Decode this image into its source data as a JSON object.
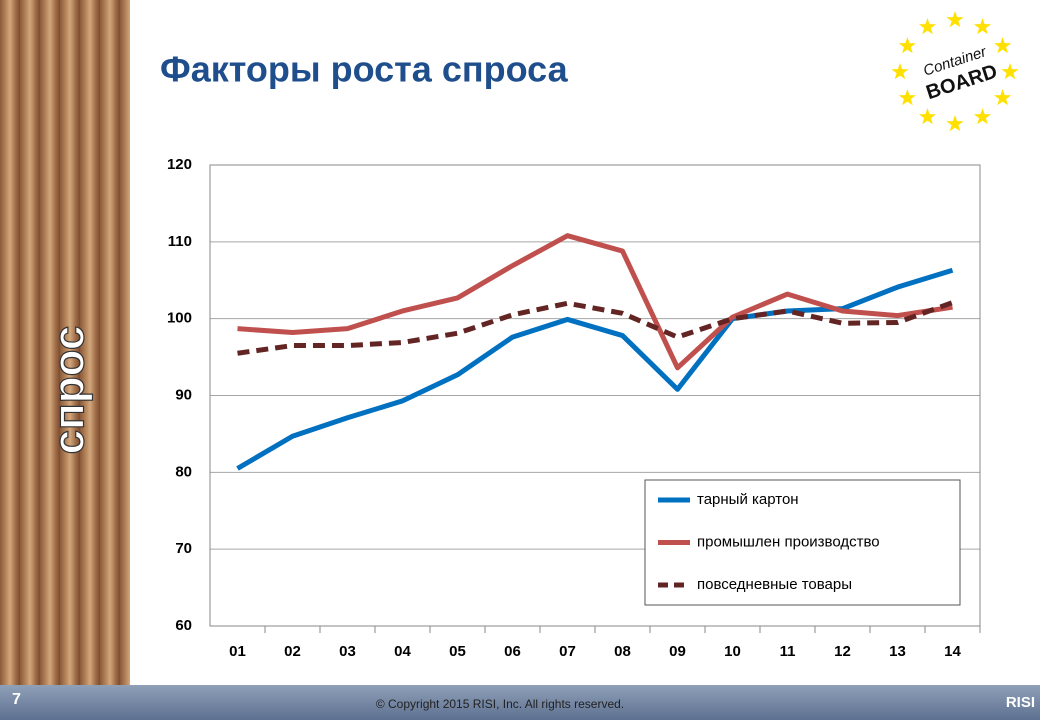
{
  "slide": {
    "side_label": "спрос",
    "logo_top": "Container",
    "logo_bottom": "BOARD",
    "page": "7",
    "copyright": "© Copyright 2015 RISI, Inc. All rights reserved.",
    "brand": "RISI"
  },
  "chart_data": {
    "type": "line",
    "title": "Факторы роста спроса",
    "categories": [
      "01",
      "02",
      "03",
      "04",
      "05",
      "06",
      "07",
      "08",
      "09",
      "10",
      "11",
      "12",
      "13",
      "14"
    ],
    "series": [
      {
        "name": "тарный картон",
        "color": "#0070c0",
        "style": "solid",
        "values": [
          80.5,
          84.7,
          87.1,
          89.3,
          92.7,
          97.6,
          99.9,
          97.8,
          90.8,
          100.0,
          101.0,
          101.3,
          104.1,
          106.3
        ]
      },
      {
        "name": "промышлен производство",
        "color": "#c0504d",
        "style": "solid",
        "values": [
          98.7,
          98.2,
          98.7,
          101.0,
          102.7,
          106.9,
          110.8,
          108.8,
          93.6,
          100.2,
          103.2,
          101.0,
          100.4,
          101.5
        ]
      },
      {
        "name": "повседневные товары",
        "color": "#632523",
        "style": "dashed",
        "values": [
          95.5,
          96.5,
          96.5,
          96.9,
          98.1,
          100.5,
          102.0,
          100.7,
          97.6,
          100.0,
          101.0,
          99.4,
          99.5,
          102.1
        ]
      }
    ],
    "ylim": [
      60,
      120
    ],
    "yticks": [
      60,
      70,
      80,
      90,
      100,
      110,
      120
    ],
    "grid": true,
    "legend": "lower right"
  }
}
